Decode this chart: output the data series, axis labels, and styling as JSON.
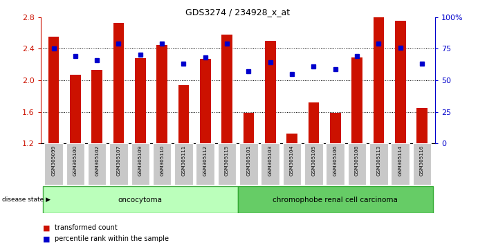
{
  "title": "GDS3274 / 234928_x_at",
  "categories": [
    "GSM305099",
    "GSM305100",
    "GSM305102",
    "GSM305107",
    "GSM305109",
    "GSM305110",
    "GSM305111",
    "GSM305112",
    "GSM305115",
    "GSM305101",
    "GSM305103",
    "GSM305104",
    "GSM305105",
    "GSM305106",
    "GSM305108",
    "GSM305113",
    "GSM305114",
    "GSM305116"
  ],
  "bar_values": [
    2.55,
    2.07,
    2.13,
    2.73,
    2.28,
    2.45,
    1.94,
    2.27,
    2.58,
    1.59,
    2.5,
    1.32,
    1.72,
    1.59,
    2.29,
    2.8,
    2.75,
    1.65
  ],
  "percentile_values": [
    75,
    69,
    66,
    79,
    70,
    79,
    63,
    68,
    79,
    57,
    64,
    55,
    61,
    59,
    69,
    79,
    76,
    63
  ],
  "group1_label": "oncocytoma",
  "group1_count": 9,
  "group2_label": "chromophobe renal cell carcinoma",
  "group2_count": 9,
  "ylim_left": [
    1.2,
    2.8
  ],
  "ylim_right": [
    0,
    100
  ],
  "bar_color": "#cc1100",
  "dot_color": "#0000cc",
  "bar_width": 0.5,
  "label_transformed": "transformed count",
  "label_percentile": "percentile rank within the sample",
  "group1_color": "#bbffbb",
  "group2_color": "#66cc66",
  "right_yticks": [
    0,
    25,
    50,
    75,
    100
  ],
  "right_yticklabels": [
    "0",
    "25",
    "50",
    "75",
    "100%"
  ],
  "left_yticks": [
    1.2,
    1.6,
    2.0,
    2.4,
    2.8
  ],
  "gridlines": [
    1.6,
    2.0,
    2.4
  ]
}
